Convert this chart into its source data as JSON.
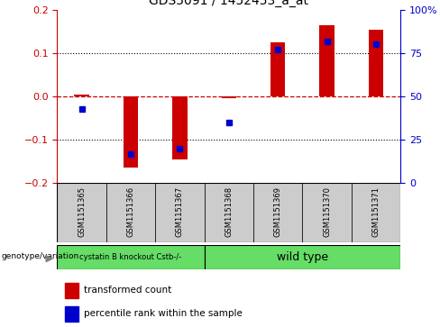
{
  "title": "GDS5091 / 1452453_a_at",
  "samples": [
    "GSM1151365",
    "GSM1151366",
    "GSM1151367",
    "GSM1151368",
    "GSM1151369",
    "GSM1151370",
    "GSM1151371"
  ],
  "red_values": [
    0.005,
    -0.165,
    -0.145,
    -0.005,
    0.125,
    0.165,
    0.155
  ],
  "blue_values_pct": [
    43,
    17,
    20,
    35,
    77,
    82,
    80
  ],
  "ylim_left": [
    -0.2,
    0.2
  ],
  "ylim_right": [
    0,
    100
  ],
  "group1_label": "cystatin B knockout Cstb-/-",
  "group2_label": "wild type",
  "group1_count": 3,
  "group2_count": 4,
  "group_bg_color": "#cccccc",
  "group_color": "#66dd66",
  "bar_color": "#cc0000",
  "dot_color": "#0000cc",
  "zero_line_color": "#cc0000",
  "left_axis_color": "#cc0000",
  "right_axis_color": "#0000cc",
  "legend_red_label": "transformed count",
  "legend_blue_label": "percentile rank within the sample",
  "bottom_label": "genotype/variation",
  "bar_width": 0.3
}
